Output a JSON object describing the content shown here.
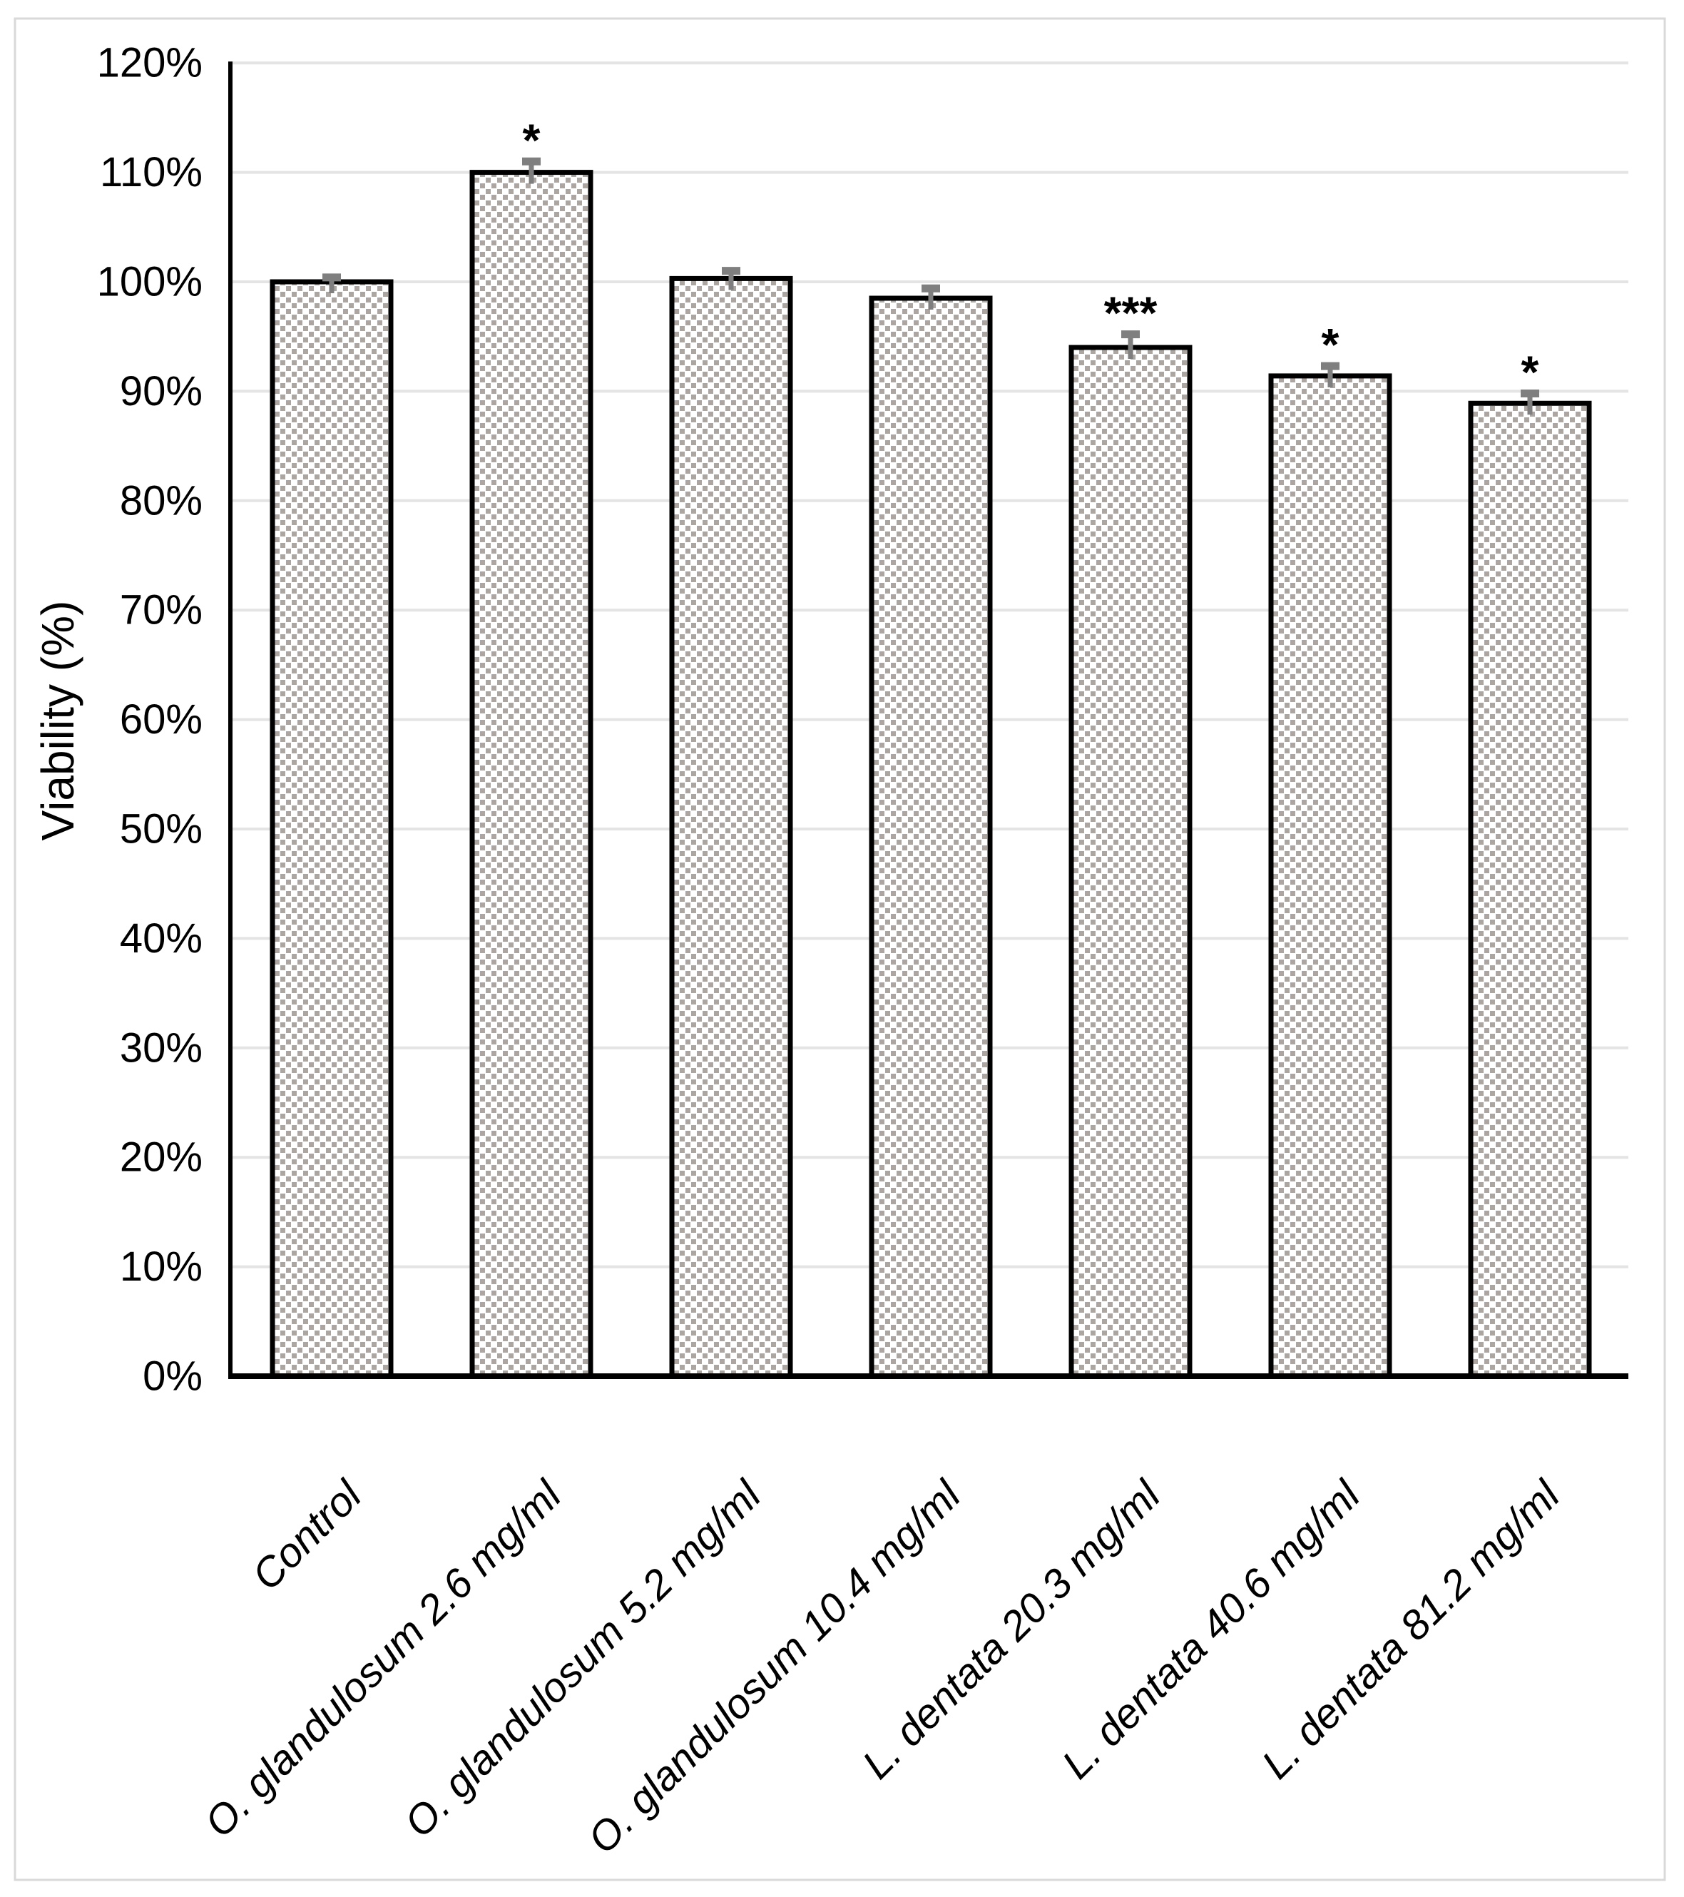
{
  "chart_data": {
    "type": "bar",
    "title": "",
    "ylabel": "Viability (%)",
    "xlabel": "",
    "categories": [
      "Control",
      "O. glandulosum 2.6 mg/ml",
      "O. glandulosum 5.2 mg/ml",
      "O. glandulosum 10.4 mg/ml",
      "L. dentata 20.3 mg/ml",
      "L. dentata 40.6 mg/ml",
      "L. dentata 81.2 mg/ml"
    ],
    "values_percent": [
      100.0,
      110.0,
      100.3,
      98.5,
      94.0,
      91.4,
      88.9
    ],
    "error_plus_percent": [
      0.4,
      1.0,
      0.7,
      0.9,
      1.2,
      0.9,
      0.9
    ],
    "significance": [
      "",
      "*",
      "",
      "",
      "***",
      "*",
      "*"
    ],
    "ylim_percent": [
      0,
      120
    ],
    "yticks": {
      "values_percent": [
        0,
        10,
        20,
        30,
        40,
        50,
        60,
        70,
        80,
        90,
        100,
        110,
        120
      ],
      "labels": [
        "0%",
        "10%",
        "20%",
        "30%",
        "40%",
        "50%",
        "60%",
        "70%",
        "80%",
        "90%",
        "100%",
        "110%",
        "120%"
      ]
    },
    "grid": true,
    "legend": false,
    "bar_style": "checker-pattern",
    "colors": {
      "pattern_gray": "#ada5a0",
      "pattern_bg": "#ffffff",
      "bar_border": "#000000",
      "error_bar": "#7f7f7f",
      "gridline": "#e4e4e4",
      "axis": "#000000",
      "frame": "#d9d9d9",
      "background": "#ffffff",
      "text": "#000000"
    }
  }
}
